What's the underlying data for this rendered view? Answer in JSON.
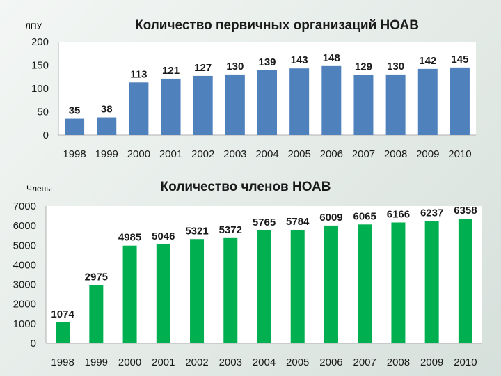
{
  "chart_data": [
    {
      "type": "bar",
      "corner_label": "ЛПУ",
      "title": "Количество первичных организаций НОАВ",
      "categories": [
        "1998",
        "1999",
        "2000",
        "2001",
        "2002",
        "2003",
        "2004",
        "2005",
        "2006",
        "2007",
        "2008",
        "2009",
        "2010"
      ],
      "values": [
        35,
        38,
        113,
        121,
        127,
        130,
        139,
        143,
        148,
        129,
        130,
        142,
        145
      ],
      "ylim": [
        0,
        200
      ],
      "yticks": [
        0,
        50,
        100,
        150,
        200
      ],
      "grid": false,
      "bar_color": "#4f81bd"
    },
    {
      "type": "bar",
      "corner_label": "Члены",
      "title": "Количество членов НОАВ",
      "categories": [
        "1998",
        "1999",
        "2000",
        "2001",
        "2002",
        "2003",
        "2004",
        "2005",
        "2006",
        "2007",
        "2008",
        "2009",
        "2010"
      ],
      "values": [
        1074,
        2975,
        4985,
        5046,
        5321,
        5372,
        5765,
        5784,
        6009,
        6065,
        6166,
        6237,
        6358
      ],
      "ylim": [
        0,
        7000
      ],
      "yticks": [
        0,
        1000,
        2000,
        3000,
        4000,
        5000,
        6000,
        7000
      ],
      "grid": false,
      "bar_color": "#00b050"
    }
  ]
}
